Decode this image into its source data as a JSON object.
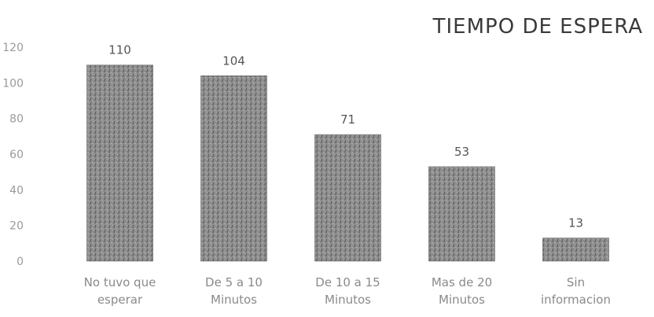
{
  "chart_data": {
    "type": "bar",
    "title": "TIEMPO DE ESPERA",
    "categories": [
      [
        "No tuvo que",
        "esperar"
      ],
      [
        "De 5 a 10",
        "Minutos"
      ],
      [
        "De 10 a 15",
        "Minutos"
      ],
      [
        "Mas de 20",
        "Minutos"
      ],
      [
        "Sin",
        "informacion"
      ]
    ],
    "values": [
      110,
      104,
      71,
      53,
      13
    ],
    "ylim": [
      0,
      120
    ],
    "yticks": [
      0,
      20,
      40,
      60,
      80,
      100,
      120
    ],
    "grid": false,
    "colors": {
      "bar": "#8c8c8c",
      "bar_dark": "#5f5f5f"
    }
  }
}
